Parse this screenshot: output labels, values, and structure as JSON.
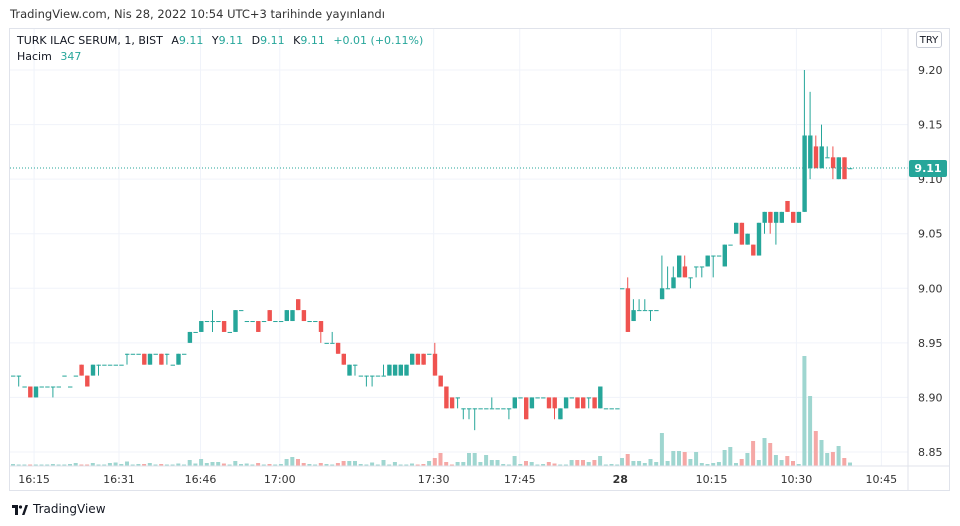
{
  "published": "TradingView.com, Nis 28, 2022 10:54 UTC+3 tarihinde yayınlandı",
  "legend": {
    "symbol": "TURK ILAC SERUM, 1, BIST",
    "open_label": "A",
    "open": "9.11",
    "high_label": "Y",
    "high": "9.11",
    "low_label": "D",
    "low": "9.11",
    "close_label": "K",
    "close": "9.11",
    "change": "+0.01 (+0.11%)",
    "volume_label": "Hacim",
    "volume": "347"
  },
  "currency_button": "TRY",
  "last_price": "9.11",
  "footer_brand": "TradingView",
  "colors": {
    "up": "#26a69a",
    "down": "#ef5350",
    "up_volume": "#9fd6d0",
    "down_volume": "#f5a8a6",
    "grid": "#f0f3fa"
  },
  "chart_data": {
    "type": "candlestick",
    "price_ticks": [
      "9.20",
      "9.15",
      "9.10",
      "9.05",
      "9.00",
      "8.95",
      "8.90",
      "8.85"
    ],
    "price_range": [
      8.85,
      9.2
    ],
    "time_ticks": [
      {
        "label": "16:15",
        "day": 1,
        "index": 3.7
      },
      {
        "label": "16:31",
        "day": 1,
        "index": 18.6
      },
      {
        "label": "16:46",
        "day": 1,
        "index": 32.9
      },
      {
        "label": "17:00",
        "day": 1,
        "index": 46.8
      },
      {
        "label": "17:30",
        "day": 1,
        "index": 73.8
      },
      {
        "label": "17:45",
        "day": 1,
        "index": 88.9
      },
      {
        "label": "28",
        "day": 2,
        "index": -0.3,
        "bold": true
      },
      {
        "label": "10:15",
        "day": 2,
        "index": 15.7
      },
      {
        "label": "10:30",
        "day": 2,
        "index": 30.6
      },
      {
        "label": "10:45",
        "day": 2,
        "index": 45.5
      }
    ],
    "candle_fields": [
      "open",
      "high",
      "low",
      "close",
      "volume"
    ],
    "day1": [
      [
        8.92,
        8.92,
        8.92,
        8.92,
        200
      ],
      [
        8.92,
        8.92,
        8.91,
        8.92,
        150
      ],
      [
        8.91,
        8.91,
        8.91,
        8.91,
        150
      ],
      [
        8.91,
        8.91,
        8.9,
        8.9,
        150
      ],
      [
        8.9,
        8.91,
        8.9,
        8.91,
        150
      ],
      [
        8.91,
        8.91,
        8.91,
        8.91,
        150
      ],
      [
        8.91,
        8.91,
        8.91,
        8.91,
        150
      ],
      [
        8.91,
        8.91,
        8.9,
        8.91,
        200
      ],
      [
        8.91,
        8.91,
        8.91,
        8.91,
        150
      ],
      [
        8.92,
        8.92,
        8.92,
        8.92,
        150
      ],
      [
        8.91,
        8.91,
        8.91,
        8.91,
        200
      ],
      [
        8.92,
        8.92,
        8.92,
        8.92,
        300
      ],
      [
        8.93,
        8.93,
        8.92,
        8.92,
        150
      ],
      [
        8.92,
        8.92,
        8.91,
        8.91,
        150
      ],
      [
        8.92,
        8.93,
        8.92,
        8.93,
        300
      ],
      [
        8.93,
        8.93,
        8.92,
        8.93,
        150
      ],
      [
        8.93,
        8.93,
        8.93,
        8.93,
        150
      ],
      [
        8.93,
        8.93,
        8.93,
        8.93,
        300
      ],
      [
        8.93,
        8.93,
        8.93,
        8.93,
        350
      ],
      [
        8.93,
        8.93,
        8.93,
        8.93,
        200
      ],
      [
        8.94,
        8.94,
        8.93,
        8.94,
        450
      ],
      [
        8.94,
        8.94,
        8.94,
        8.94,
        150
      ],
      [
        8.94,
        8.94,
        8.94,
        8.94,
        200
      ],
      [
        8.94,
        8.94,
        8.93,
        8.93,
        200
      ],
      [
        8.93,
        8.94,
        8.93,
        8.94,
        300
      ],
      [
        8.94,
        8.94,
        8.94,
        8.94,
        150
      ],
      [
        8.94,
        8.94,
        8.93,
        8.93,
        200
      ],
      [
        8.94,
        8.94,
        8.93,
        8.94,
        150
      ],
      [
        8.93,
        8.93,
        8.93,
        8.93,
        150
      ],
      [
        8.93,
        8.94,
        8.93,
        8.94,
        250
      ],
      [
        8.94,
        8.94,
        8.94,
        8.94,
        150
      ],
      [
        8.95,
        8.96,
        8.95,
        8.96,
        600
      ],
      [
        8.96,
        8.96,
        8.96,
        8.96,
        250
      ],
      [
        8.96,
        8.97,
        8.96,
        8.97,
        700
      ],
      [
        8.97,
        8.97,
        8.97,
        8.97,
        300
      ],
      [
        8.97,
        8.98,
        8.96,
        8.97,
        400
      ],
      [
        8.97,
        8.97,
        8.97,
        8.97,
        400
      ],
      [
        8.97,
        8.97,
        8.96,
        8.96,
        250
      ],
      [
        8.96,
        8.96,
        8.96,
        8.96,
        150
      ],
      [
        8.96,
        8.98,
        8.96,
        8.98,
        500
      ],
      [
        8.98,
        8.98,
        8.98,
        8.98,
        200
      ],
      [
        8.97,
        8.97,
        8.97,
        8.97,
        250
      ],
      [
        8.97,
        8.97,
        8.97,
        8.97,
        150
      ],
      [
        8.97,
        8.97,
        8.96,
        8.96,
        300
      ],
      [
        8.97,
        8.97,
        8.97,
        8.97,
        150
      ],
      [
        8.98,
        8.98,
        8.97,
        8.97,
        200
      ],
      [
        8.97,
        8.97,
        8.97,
        8.97,
        150
      ],
      [
        8.97,
        8.97,
        8.97,
        8.97,
        200
      ],
      [
        8.97,
        8.98,
        8.97,
        8.98,
        700
      ],
      [
        8.97,
        8.98,
        8.97,
        8.98,
        900
      ],
      [
        8.99,
        8.99,
        8.98,
        8.98,
        700
      ],
      [
        8.98,
        8.98,
        8.97,
        8.97,
        300
      ],
      [
        8.97,
        8.97,
        8.97,
        8.97,
        200
      ],
      [
        8.97,
        8.97,
        8.97,
        8.97,
        150
      ],
      [
        8.97,
        8.97,
        8.95,
        8.96,
        300
      ],
      [
        8.95,
        8.95,
        8.95,
        8.95,
        200
      ],
      [
        8.95,
        8.96,
        8.95,
        8.95,
        150
      ],
      [
        8.95,
        8.95,
        8.94,
        8.94,
        300
      ],
      [
        8.94,
        8.94,
        8.93,
        8.93,
        500
      ],
      [
        8.92,
        8.93,
        8.92,
        8.93,
        500
      ],
      [
        8.93,
        8.93,
        8.92,
        8.93,
        500
      ],
      [
        8.92,
        8.92,
        8.92,
        8.92,
        200
      ],
      [
        8.92,
        8.92,
        8.91,
        8.92,
        150
      ],
      [
        8.92,
        8.92,
        8.91,
        8.92,
        350
      ],
      [
        8.92,
        8.92,
        8.92,
        8.92,
        150
      ],
      [
        8.92,
        8.93,
        8.92,
        8.92,
        600
      ],
      [
        8.92,
        8.93,
        8.92,
        8.93,
        150
      ],
      [
        8.92,
        8.93,
        8.92,
        8.93,
        400
      ],
      [
        8.92,
        8.93,
        8.92,
        8.93,
        150
      ],
      [
        8.92,
        8.93,
        8.92,
        8.93,
        150
      ],
      [
        8.93,
        8.94,
        8.93,
        8.94,
        250
      ],
      [
        8.94,
        8.94,
        8.93,
        8.93,
        150
      ],
      [
        8.94,
        8.94,
        8.93,
        8.93,
        200
      ],
      [
        8.94,
        8.94,
        8.94,
        8.94,
        500
      ],
      [
        8.94,
        8.95,
        8.92,
        8.92,
        800
      ],
      [
        8.92,
        8.92,
        8.91,
        8.91,
        1300
      ],
      [
        8.91,
        8.91,
        8.89,
        8.89,
        400
      ],
      [
        8.9,
        8.9,
        8.89,
        8.89,
        150
      ],
      [
        8.9,
        8.9,
        8.89,
        8.9,
        400
      ],
      [
        8.89,
        8.89,
        8.88,
        8.89,
        400
      ],
      [
        8.89,
        8.89,
        8.88,
        8.89,
        1300
      ],
      [
        8.89,
        8.89,
        8.87,
        8.89,
        1300
      ],
      [
        8.89,
        8.89,
        8.89,
        8.89,
        400
      ],
      [
        8.89,
        8.89,
        8.89,
        8.89,
        1100
      ],
      [
        8.89,
        8.9,
        8.89,
        8.89,
        600
      ],
      [
        8.89,
        8.89,
        8.89,
        8.89,
        600
      ],
      [
        8.89,
        8.89,
        8.89,
        8.89,
        200
      ],
      [
        8.89,
        8.89,
        8.88,
        8.89,
        150
      ],
      [
        8.89,
        8.9,
        8.89,
        8.9,
        1000
      ],
      [
        8.9,
        8.9,
        8.9,
        8.9,
        200
      ],
      [
        8.9,
        8.9,
        8.88,
        8.88,
        500
      ],
      [
        8.89,
        8.9,
        8.89,
        8.9,
        400
      ],
      [
        8.9,
        8.9,
        8.9,
        8.9,
        150
      ],
      [
        8.9,
        8.9,
        8.9,
        8.9,
        200
      ],
      [
        8.9,
        8.9,
        8.89,
        8.89,
        400
      ],
      [
        8.9,
        8.9,
        8.88,
        8.89,
        250
      ],
      [
        8.88,
        8.89,
        8.88,
        8.89,
        150
      ],
      [
        8.89,
        8.9,
        8.89,
        8.9,
        150
      ],
      [
        8.9,
        8.9,
        8.9,
        8.9,
        600
      ],
      [
        8.9,
        8.9,
        8.89,
        8.89,
        600
      ],
      [
        8.9,
        8.9,
        8.89,
        8.89,
        600
      ],
      [
        8.9,
        8.9,
        8.89,
        8.9,
        400
      ],
      [
        8.9,
        8.9,
        8.89,
        8.89,
        600
      ],
      [
        8.89,
        8.91,
        8.89,
        8.91,
        1000
      ],
      [
        8.89,
        8.89,
        8.89,
        8.89,
        150
      ],
      [
        8.89,
        8.89,
        8.89,
        8.89,
        200
      ],
      [
        8.89,
        8.89,
        8.89,
        8.89,
        150
      ]
    ],
    "day2": [
      [
        9.0,
        9.0,
        9.0,
        9.0,
        800
      ],
      [
        9.0,
        9.01,
        8.96,
        8.96,
        1200
      ],
      [
        8.97,
        8.99,
        8.97,
        8.98,
        500
      ],
      [
        8.98,
        8.99,
        8.98,
        8.98,
        500
      ],
      [
        8.98,
        8.99,
        8.98,
        8.98,
        300
      ],
      [
        8.98,
        8.98,
        8.97,
        8.98,
        700
      ],
      [
        8.98,
        8.98,
        8.98,
        8.98,
        400
      ],
      [
        8.99,
        9.03,
        8.99,
        9.0,
        3300
      ],
      [
        9.0,
        9.02,
        9.0,
        9.0,
        500
      ],
      [
        9.0,
        9.02,
        9.0,
        9.01,
        1500
      ],
      [
        9.01,
        9.03,
        9.01,
        9.03,
        1500
      ],
      [
        9.02,
        9.03,
        9.01,
        9.01,
        1400
      ],
      [
        9.01,
        9.01,
        9.0,
        9.01,
        700
      ],
      [
        9.02,
        9.02,
        9.01,
        9.02,
        1400
      ],
      [
        9.02,
        9.02,
        9.01,
        9.02,
        300
      ],
      [
        9.02,
        9.03,
        9.02,
        9.03,
        200
      ],
      [
        9.03,
        9.03,
        9.01,
        9.03,
        300
      ],
      [
        9.03,
        9.03,
        9.03,
        9.03,
        400
      ],
      [
        9.02,
        9.04,
        9.02,
        9.04,
        1600
      ],
      [
        9.04,
        9.04,
        9.04,
        9.04,
        1900
      ],
      [
        9.05,
        9.06,
        9.05,
        9.06,
        300
      ],
      [
        9.06,
        9.06,
        9.04,
        9.04,
        700
      ],
      [
        9.04,
        9.05,
        9.04,
        9.05,
        1300
      ],
      [
        9.04,
        9.04,
        9.03,
        9.03,
        2500
      ],
      [
        9.03,
        9.06,
        9.03,
        9.06,
        600
      ],
      [
        9.06,
        9.07,
        9.05,
        9.07,
        2800
      ],
      [
        9.07,
        9.07,
        9.05,
        9.06,
        2300
      ],
      [
        9.06,
        9.07,
        9.04,
        9.07,
        1100
      ],
      [
        9.06,
        9.07,
        9.06,
        9.07,
        600
      ],
      [
        9.08,
        9.08,
        9.07,
        9.07,
        1000
      ],
      [
        9.07,
        9.07,
        9.06,
        9.06,
        500
      ],
      [
        9.06,
        9.07,
        9.06,
        9.07,
        200
      ],
      [
        9.07,
        9.2,
        9.07,
        9.14,
        11000
      ],
      [
        9.11,
        9.18,
        9.1,
        9.14,
        7000
      ],
      [
        9.13,
        9.14,
        9.11,
        9.11,
        3500
      ],
      [
        9.11,
        9.15,
        9.11,
        9.13,
        2600
      ],
      [
        9.12,
        9.13,
        9.12,
        9.12,
        1300
      ],
      [
        9.12,
        9.13,
        9.1,
        9.11,
        1400
      ],
      [
        9.1,
        9.12,
        9.1,
        9.12,
        2000
      ],
      [
        9.12,
        9.12,
        9.1,
        9.1,
        800
      ],
      [
        9.11,
        9.11,
        9.11,
        9.11,
        347
      ]
    ]
  }
}
